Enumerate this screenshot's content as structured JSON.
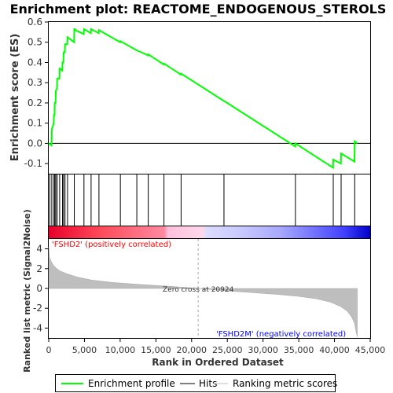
{
  "chart_data": {
    "type": "line",
    "title": "Enrichment plot: REACTOME_ENDOGENOUS_STEROLS",
    "es_panel": {
      "ylabel": "Enrichment score (ES)",
      "ylim": [
        -0.15,
        0.6
      ],
      "yticks": [
        -0.1,
        0.0,
        0.1,
        0.2,
        0.3,
        0.4,
        0.5,
        0.6
      ],
      "ytick_labels": [
        "-0.1",
        "0.0",
        "0.1",
        "0.2",
        "0.3",
        "0.4",
        "0.5",
        "0.6"
      ],
      "series": [
        {
          "name": "Enrichment profile",
          "color": "#00ff00",
          "x": [
            0,
            400,
            430,
            700,
            730,
            820,
            850,
            960,
            990,
            1150,
            1180,
            1500,
            1530,
            1900,
            1930,
            2050,
            2080,
            2250,
            2280,
            2600,
            2630,
            3550,
            3580,
            3700,
            3730,
            4900,
            4930,
            5900,
            5930,
            7000,
            7030,
            10000,
            10030,
            12300,
            12330,
            13900,
            13930,
            16100,
            16130,
            18500,
            18530,
            24500,
            24530,
            34500,
            34530,
            39800,
            39830,
            40900,
            40930,
            42800,
            42830,
            43200
          ],
          "y": [
            0.0,
            -0.01,
            0.07,
            0.1,
            0.14,
            0.14,
            0.2,
            0.2,
            0.26,
            0.27,
            0.32,
            0.32,
            0.37,
            0.36,
            0.4,
            0.4,
            0.45,
            0.45,
            0.49,
            0.49,
            0.525,
            0.5,
            0.565,
            0.565,
            0.56,
            0.54,
            0.565,
            0.545,
            0.565,
            0.545,
            0.56,
            0.5,
            0.505,
            0.46,
            0.46,
            0.435,
            0.44,
            0.39,
            0.395,
            0.34,
            0.345,
            0.21,
            0.21,
            -0.015,
            0.0,
            -0.12,
            -0.08,
            -0.1,
            -0.05,
            -0.09,
            0.01,
            0.0
          ]
        }
      ]
    },
    "hits": [
      150,
      430,
      730,
      850,
      990,
      1180,
      1530,
      1930,
      2080,
      2280,
      2630,
      3580,
      4930,
      5930,
      7030,
      10030,
      12330,
      13930,
      16130,
      18530,
      24530,
      34530,
      39830,
      40930,
      42830
    ],
    "metric_panel": {
      "ylabel": "Ranked list metric (Signal2Noise)",
      "xlabel": "Rank in Ordered Dataset",
      "ylim": [
        -5,
        5
      ],
      "yticks": [
        -4,
        -2,
        0,
        2,
        4
      ],
      "ytick_labels": [
        "-4",
        "-2",
        "0",
        "2",
        "4"
      ],
      "xlim": [
        0,
        45000
      ],
      "xticks": [
        0,
        5000,
        10000,
        15000,
        20000,
        25000,
        30000,
        35000,
        40000,
        45000
      ],
      "xtick_labels": [
        "0",
        "5,000",
        "10,000",
        "15,000",
        "20,000",
        "25,000",
        "30,000",
        "35,000",
        "40,000",
        "45,000"
      ],
      "profile": {
        "x": [
          0,
          100,
          300,
          600,
          1000,
          1500,
          2500,
          4000,
          6000,
          9000,
          13000,
          17000,
          20924,
          24000,
          28000,
          32000,
          35000,
          37500,
          39500,
          40800,
          41800,
          42400,
          42800,
          43000,
          43200
        ],
        "y": [
          4.2,
          3.2,
          2.8,
          2.4,
          2.1,
          1.8,
          1.5,
          1.15,
          0.85,
          0.6,
          0.4,
          0.22,
          0.0,
          -0.2,
          -0.4,
          -0.6,
          -0.8,
          -1.05,
          -1.4,
          -1.8,
          -2.3,
          -2.9,
          -3.5,
          -4.3,
          -4.9
        ]
      },
      "zero_cross_label": "Zero cross at 20924",
      "zero_cross_x": 20924,
      "pos_label": "'FSHD2' (positively correlated)",
      "neg_label": "'FSHD2M' (negatively correlated)",
      "pos_color": "#ff0000",
      "neg_color": "#0000ff"
    },
    "legend": {
      "items": [
        "Enrichment profile",
        "Hits",
        "Ranking metric scores"
      ],
      "colors": [
        "#00ff00",
        "#000000",
        "#bebebe"
      ]
    },
    "n_genes": 43200
  }
}
